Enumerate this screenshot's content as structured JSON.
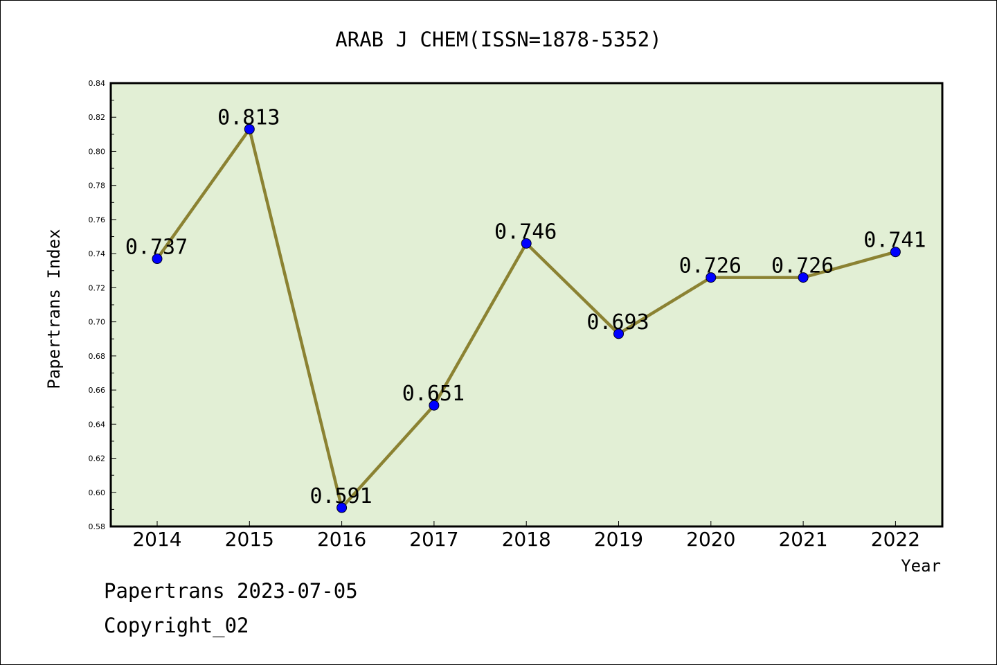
{
  "chart_data": {
    "type": "line",
    "title": "ARAB J CHEM(ISSN=1878-5352)",
    "xlabel": "Year",
    "ylabel": "Papertrans Index",
    "categories": [
      "2014",
      "2015",
      "2016",
      "2017",
      "2018",
      "2019",
      "2020",
      "2021",
      "2022"
    ],
    "values": [
      0.737,
      0.813,
      0.591,
      0.651,
      0.746,
      0.693,
      0.726,
      0.726,
      0.741
    ],
    "data_labels": [
      "0.737",
      "0.813",
      "0.591",
      "0.651",
      "0.746",
      "0.693",
      "0.726",
      "0.726",
      "0.741"
    ],
    "ylim": [
      0.58,
      0.84
    ],
    "yticks": [
      "0.58",
      "0.60",
      "0.62",
      "0.64",
      "0.66",
      "0.68",
      "0.70",
      "0.72",
      "0.74",
      "0.76",
      "0.78",
      "0.80",
      "0.82",
      "0.84"
    ],
    "grid": false,
    "legend": "none",
    "colors": {
      "plot_bg": "#e2efd5",
      "line": "#8b8232",
      "marker": "#0000ff"
    }
  },
  "footer": {
    "line1": "Papertrans 2023-07-05",
    "line2": "Copyright_02"
  }
}
